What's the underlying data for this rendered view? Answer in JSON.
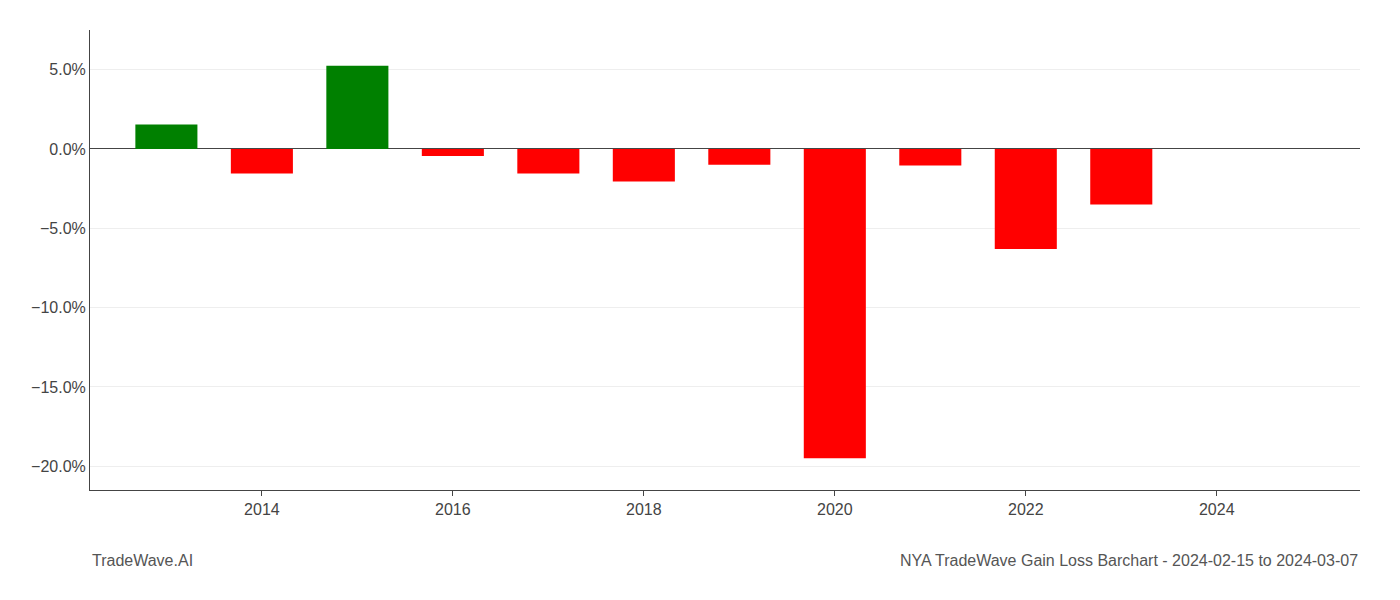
{
  "chart_data": {
    "type": "bar",
    "title": "NYA TradeWave Gain Loss Barchart - 2024-02-15 to 2024-03-07",
    "annotations": [
      "TradeWave.AI"
    ],
    "x": [
      2013,
      2014,
      2015,
      2016,
      2017,
      2018,
      2019,
      2020,
      2021,
      2022,
      2023
    ],
    "values": [
      1.55,
      -1.55,
      5.25,
      -0.45,
      -1.55,
      -2.05,
      -1.0,
      -19.5,
      -1.05,
      -6.3,
      -3.5
    ],
    "colors": [
      "#008000",
      "#ff0000",
      "#008000",
      "#ff0000",
      "#ff0000",
      "#ff0000",
      "#ff0000",
      "#ff0000",
      "#ff0000",
      "#ff0000",
      "#ff0000"
    ],
    "xlim": [
      2012.2,
      2025.5
    ],
    "xticks": [
      2014,
      2016,
      2018,
      2020,
      2022,
      2024
    ],
    "ylim": [
      -21.5,
      7.5
    ],
    "yticks": [
      {
        "value": 5.0,
        "label": "5.0%"
      },
      {
        "value": 0.0,
        "label": "0.0%"
      },
      {
        "value": -5.0,
        "label": "−5.0%"
      },
      {
        "value": -10.0,
        "label": "−10.0%"
      },
      {
        "value": -15.0,
        "label": "−15.0%"
      },
      {
        "value": -20.0,
        "label": "−20.0%"
      }
    ],
    "grid": true
  }
}
